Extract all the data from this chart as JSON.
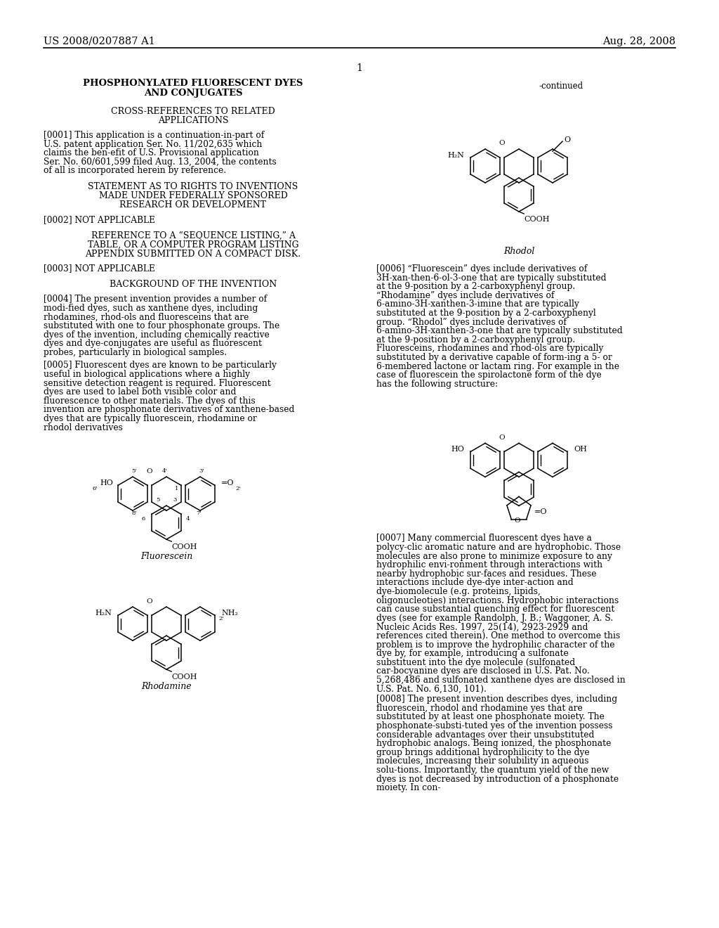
{
  "bg": "#ffffff",
  "header_left": "US 2008/0207887 A1",
  "header_right": "Aug. 28, 2008",
  "page_num": "1",
  "title": "PHOSPHONYLATED FLUORESCENT DYES\nAND CONJUGATES",
  "s1": "CROSS-REFERENCES TO RELATED\nAPPLICATIONS",
  "p1": "[0001]    This application is a continuation-in-part of U.S. patent application Ser. No. 11/202,635 which claims the ben-efit of U.S. Provisional application Ser. No. 60/601,599 filed Aug. 13, 2004, the contents of all is incorporated herein by reference.",
  "s2": "STATEMENT AS TO RIGHTS TO INVENTIONS\nMADE UNDER FEDERALLY SPONSORED\nRESEARCH OR DEVELOPMENT",
  "p2": "[0002]    NOT APPLICABLE",
  "s3": "REFERENCE TO A “SEQUENCE LISTING,” A\nTABLE, OR A COMPUTER PROGRAM LISTING\nAPPENDIX SUBMITTED ON A COMPACT DISK.",
  "p3": "[0003]    NOT APPLICABLE",
  "s4": "BACKGROUND OF THE INVENTION",
  "p4": "[0004]    The present invention provides a number of modi-fied dyes, such as xanthene dyes, including rhodamines, rhod-ols and fluoresceins that are substituted with one to four phosphonate groups. The dyes of the invention, including chemically reactive dyes and dye-conjugates are useful as fluorescent probes, particularly in biological samples.",
  "p5": "[0005]    Fluorescent dyes are known to be particularly useful in biological applications where a highly sensitive detection reagent is required. Fluorescent dyes are used to label both visible color and fluorescence to other materials. The dyes of this invention are phosphonate derivatives of xanthene-based dyes that are typically fluorescein, rhodamine or rhodol derivatives",
  "continued": "-continued",
  "rhodol_lbl": "Rhodol",
  "p6": "[0006]    “Fluorescein” dyes include derivatives of 3H-xan-then-6-ol-3-one that are typically substituted at the 9-position by a 2-carboxyphenyl group. “Rhodamine” dyes include derivatives of 6-amino-3H-xanthen-3-imine that are typically substituted at the 9-position by a 2-carboxyphenyl group. “Rhodol” dyes include derivatives of 6-amino-3H-xanthen-3-one that are typically substituted at the 9-position by a 2-carboxyphenyl group. Fluoresceins, rhodamines and rhod-ols are typically substituted by a derivative capable of form-ing a 5- or 6-membered lactone or lactam ring. For example in the case of fluorescein the spirolactone form of the dye has the following structure:",
  "fluor_lbl": "Fluorescein",
  "rhodamine_lbl": "Rhodamine",
  "p7": "[0007]    Many commercial fluorescent dyes have a polycy-clic aromatic nature and are hydrophobic. Those molecules are also prone to minimize exposure to any hydrophilic envi-ronment through interactions with nearby hydrophobic sur-faces and residues. These interactions include dye-dye inter-action and dye-biomolecule (e.g. proteins, lipids, oligonucleoties) interactions. Hydrophobic interactions can cause substantial quenching effect for fluorescent dyes (see for example Randolph, J. B.; Waggoner, A. S. Nucleic Acids Res. 1997, 25(14), 2923-2929 and references cited therein). One method to overcome this problem is to improve the hydrophilic character of the dye by, for example, introducing a sulfonate substituent into the dye molecule (sulfonated car-bocyanine dyes are disclosed in U.S. Pat. No. 5,268,486 and sulfonated xanthene dyes are disclosed in U.S. Pat. No. 6,130, 101).",
  "p8": "[0008]    The present invention describes dyes, including fluorescein, rhodol and rhodamine yes that are substituted by at least one phosphonate moiety. The phosphonate-substi-tuted yes of the invention possess considerable advantages over their unsubstituted hydrophobic analogs. Being ionized, the phosphonate group brings additional hydrophilicity to the dye molecules, increasing their solubility in aqueous solu-tions. Importantly, the quantum yield of the new dyes is not decreased by introduction of a phosphonate moiety. In con-"
}
